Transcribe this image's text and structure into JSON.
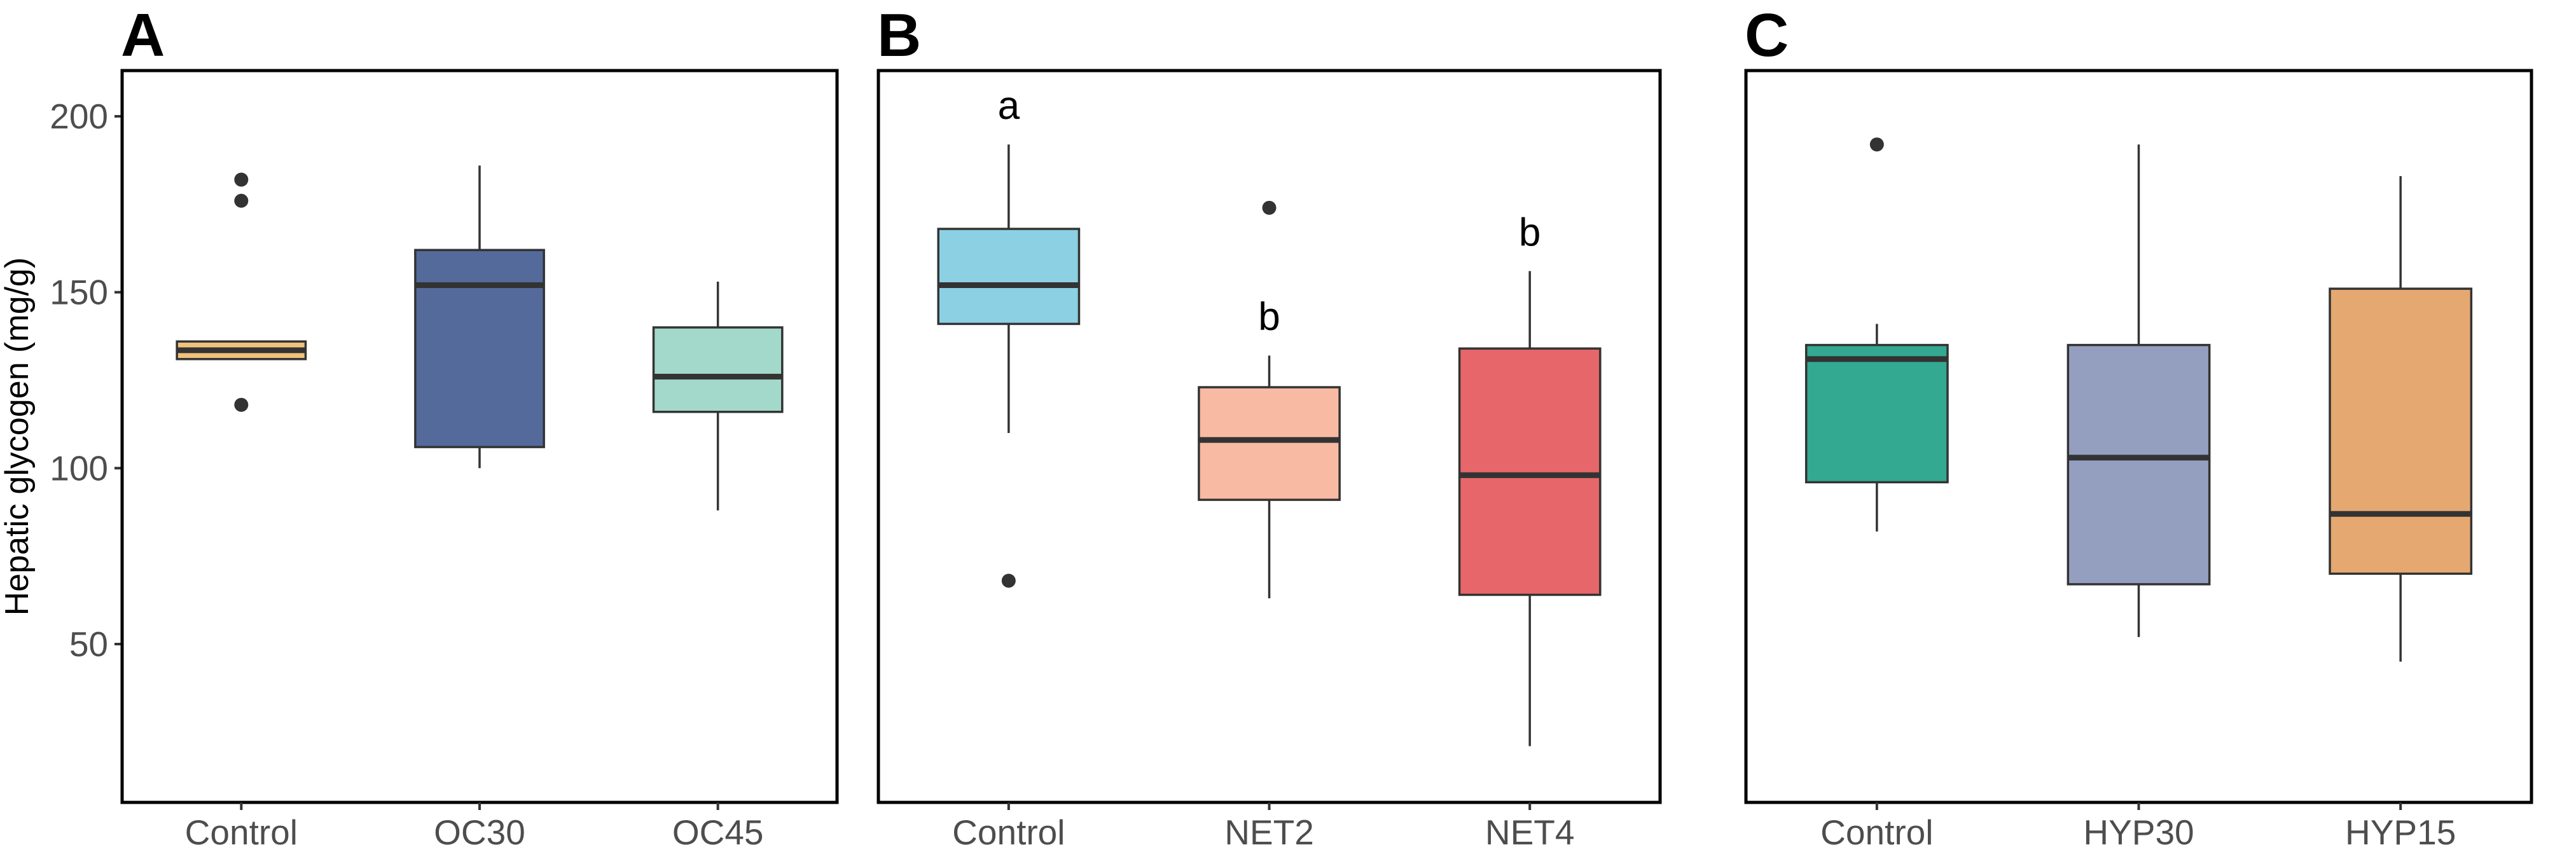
{
  "chart_data": {
    "type": "box",
    "ylabel": "Hepatic glycogen (mg/g)",
    "ylim": [
      5,
      213
    ],
    "yticks": [
      50,
      100,
      150,
      200
    ],
    "grid": false,
    "shared_y_axis": true,
    "panels": [
      {
        "letter": "A",
        "categories": [
          "Control",
          "OC30",
          "OC45"
        ],
        "boxes": [
          {
            "category": "Control",
            "whisker_low": 131,
            "q1": 131,
            "median": 133.5,
            "q3": 136,
            "whisker_high": 136,
            "outliers": [
              182,
              176,
              118
            ],
            "color": "#F0C27B",
            "sig": ""
          },
          {
            "category": "OC30",
            "whisker_low": 100,
            "q1": 106,
            "median": 152,
            "q3": 162,
            "whisker_high": 186,
            "outliers": [],
            "color": "#546A9A",
            "sig": ""
          },
          {
            "category": "OC45",
            "whisker_low": 88,
            "q1": 116,
            "median": 126,
            "q3": 140,
            "whisker_high": 153,
            "outliers": [],
            "color": "#A2D9CB",
            "sig": ""
          }
        ]
      },
      {
        "letter": "B",
        "categories": [
          "Control",
          "NET2",
          "NET4"
        ],
        "boxes": [
          {
            "category": "Control",
            "whisker_low": 110,
            "q1": 141,
            "median": 152,
            "q3": 168,
            "whisker_high": 192,
            "outliers": [
              68
            ],
            "color": "#8CD0E3",
            "sig": "a"
          },
          {
            "category": "NET2",
            "whisker_low": 63,
            "q1": 91,
            "median": 108,
            "q3": 123,
            "whisker_high": 132,
            "outliers": [
              174
            ],
            "color": "#F9BAA3",
            "sig": "b"
          },
          {
            "category": "NET4",
            "whisker_low": 21,
            "q1": 64,
            "median": 98,
            "q3": 134,
            "whisker_high": 156,
            "outliers": [],
            "color": "#E76669",
            "sig": "b"
          }
        ]
      },
      {
        "letter": "C",
        "categories": [
          "Control",
          "HYP30",
          "HYP15"
        ],
        "boxes": [
          {
            "category": "Control",
            "whisker_low": 82,
            "q1": 96,
            "median": 131,
            "q3": 135,
            "whisker_high": 141,
            "outliers": [
              192
            ],
            "color": "#33A991",
            "sig": ""
          },
          {
            "category": "HYP30",
            "whisker_low": 52,
            "q1": 67,
            "median": 103,
            "q3": 135,
            "whisker_high": 192,
            "outliers": [],
            "color": "#949FC0",
            "sig": ""
          },
          {
            "category": "HYP15",
            "whisker_low": 45,
            "q1": 70,
            "median": 87,
            "q3": 151,
            "whisker_high": 183,
            "outliers": [],
            "color": "#E6A871",
            "sig": ""
          }
        ]
      }
    ]
  }
}
